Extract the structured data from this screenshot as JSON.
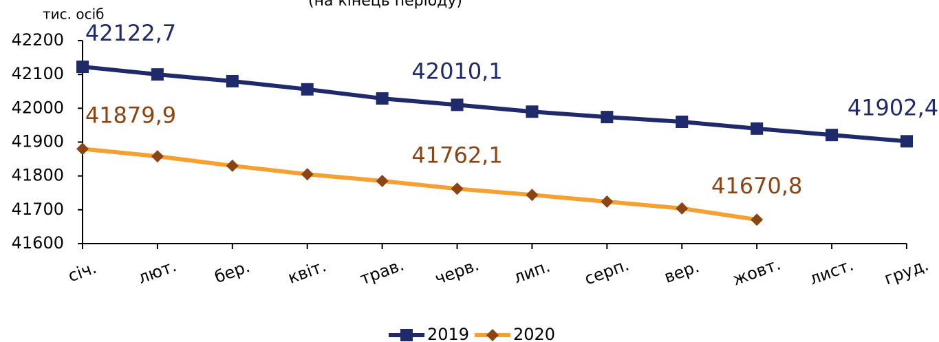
{
  "chart_data": {
    "type": "line",
    "subtitle": "(на кінець періоду)",
    "y_label": "тис. осіб",
    "categories": [
      "січ.",
      "лют.",
      "бер.",
      "квіт.",
      "трав.",
      "черв.",
      "лип.",
      "серп.",
      "вер.",
      "жовт.",
      "лист.",
      "груд."
    ],
    "series": [
      {
        "name": "2019",
        "color": "#1f2a6b",
        "marker": "square",
        "label_color": "#1f2a6b",
        "values": [
          42122.7,
          42100,
          42080,
          42056,
          42029,
          42010.1,
          41990,
          41974,
          41960,
          41940,
          41921,
          41902.4
        ],
        "value_labels": [
          "42122,7",
          null,
          null,
          null,
          null,
          "42010,1",
          null,
          null,
          null,
          null,
          null,
          "41902,4"
        ]
      },
      {
        "name": "2020",
        "color": "#f5a030",
        "marker": "diamond",
        "marker_color": "#8b4513",
        "label_color": "#8b4513",
        "values": [
          41879.9,
          41858,
          41830,
          41805,
          41785,
          41762.1,
          41744,
          41724,
          41704,
          41670.8,
          null,
          null
        ],
        "value_labels": [
          "41879,9",
          null,
          null,
          null,
          null,
          "41762,1",
          null,
          null,
          null,
          "41670,8",
          null,
          null
        ]
      }
    ],
    "ylim": [
      41600,
      42200
    ],
    "yticks": [
      41600,
      41700,
      41800,
      41900,
      42000,
      42100,
      42200
    ],
    "grid": false
  }
}
